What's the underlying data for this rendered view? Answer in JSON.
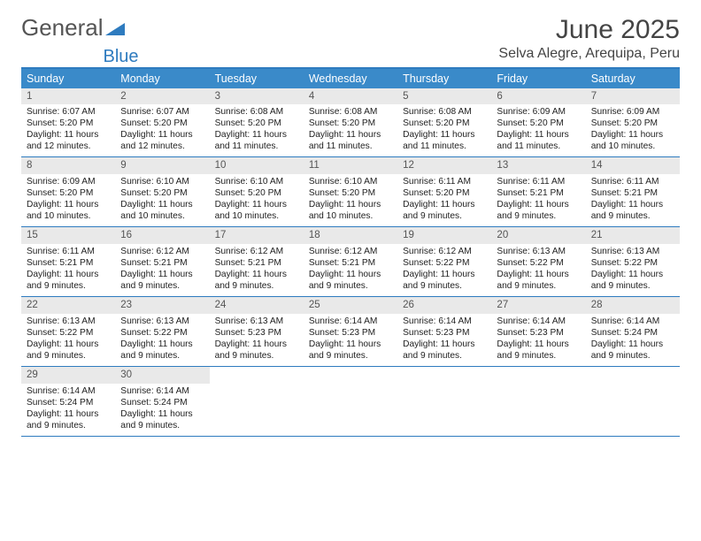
{
  "brand": {
    "part1": "General",
    "part2": "Blue"
  },
  "title": "June 2025",
  "location": "Selva Alegre, Arequipa, Peru",
  "colors": {
    "header_bg": "#3a8ac9",
    "rule": "#2e7bbf",
    "daynum_bg": "#e9e9e9",
    "text": "#222222",
    "title_text": "#444444"
  },
  "layout": {
    "columns": 7,
    "rows": 5
  },
  "day_headers": [
    "Sunday",
    "Monday",
    "Tuesday",
    "Wednesday",
    "Thursday",
    "Friday",
    "Saturday"
  ],
  "days": [
    {
      "n": "1",
      "sunrise": "6:07 AM",
      "sunset": "5:20 PM",
      "daylight": "11 hours and 12 minutes."
    },
    {
      "n": "2",
      "sunrise": "6:07 AM",
      "sunset": "5:20 PM",
      "daylight": "11 hours and 12 minutes."
    },
    {
      "n": "3",
      "sunrise": "6:08 AM",
      "sunset": "5:20 PM",
      "daylight": "11 hours and 11 minutes."
    },
    {
      "n": "4",
      "sunrise": "6:08 AM",
      "sunset": "5:20 PM",
      "daylight": "11 hours and 11 minutes."
    },
    {
      "n": "5",
      "sunrise": "6:08 AM",
      "sunset": "5:20 PM",
      "daylight": "11 hours and 11 minutes."
    },
    {
      "n": "6",
      "sunrise": "6:09 AM",
      "sunset": "5:20 PM",
      "daylight": "11 hours and 11 minutes."
    },
    {
      "n": "7",
      "sunrise": "6:09 AM",
      "sunset": "5:20 PM",
      "daylight": "11 hours and 10 minutes."
    },
    {
      "n": "8",
      "sunrise": "6:09 AM",
      "sunset": "5:20 PM",
      "daylight": "11 hours and 10 minutes."
    },
    {
      "n": "9",
      "sunrise": "6:10 AM",
      "sunset": "5:20 PM",
      "daylight": "11 hours and 10 minutes."
    },
    {
      "n": "10",
      "sunrise": "6:10 AM",
      "sunset": "5:20 PM",
      "daylight": "11 hours and 10 minutes."
    },
    {
      "n": "11",
      "sunrise": "6:10 AM",
      "sunset": "5:20 PM",
      "daylight": "11 hours and 10 minutes."
    },
    {
      "n": "12",
      "sunrise": "6:11 AM",
      "sunset": "5:20 PM",
      "daylight": "11 hours and 9 minutes."
    },
    {
      "n": "13",
      "sunrise": "6:11 AM",
      "sunset": "5:21 PM",
      "daylight": "11 hours and 9 minutes."
    },
    {
      "n": "14",
      "sunrise": "6:11 AM",
      "sunset": "5:21 PM",
      "daylight": "11 hours and 9 minutes."
    },
    {
      "n": "15",
      "sunrise": "6:11 AM",
      "sunset": "5:21 PM",
      "daylight": "11 hours and 9 minutes."
    },
    {
      "n": "16",
      "sunrise": "6:12 AM",
      "sunset": "5:21 PM",
      "daylight": "11 hours and 9 minutes."
    },
    {
      "n": "17",
      "sunrise": "6:12 AM",
      "sunset": "5:21 PM",
      "daylight": "11 hours and 9 minutes."
    },
    {
      "n": "18",
      "sunrise": "6:12 AM",
      "sunset": "5:21 PM",
      "daylight": "11 hours and 9 minutes."
    },
    {
      "n": "19",
      "sunrise": "6:12 AM",
      "sunset": "5:22 PM",
      "daylight": "11 hours and 9 minutes."
    },
    {
      "n": "20",
      "sunrise": "6:13 AM",
      "sunset": "5:22 PM",
      "daylight": "11 hours and 9 minutes."
    },
    {
      "n": "21",
      "sunrise": "6:13 AM",
      "sunset": "5:22 PM",
      "daylight": "11 hours and 9 minutes."
    },
    {
      "n": "22",
      "sunrise": "6:13 AM",
      "sunset": "5:22 PM",
      "daylight": "11 hours and 9 minutes."
    },
    {
      "n": "23",
      "sunrise": "6:13 AM",
      "sunset": "5:22 PM",
      "daylight": "11 hours and 9 minutes."
    },
    {
      "n": "24",
      "sunrise": "6:13 AM",
      "sunset": "5:23 PM",
      "daylight": "11 hours and 9 minutes."
    },
    {
      "n": "25",
      "sunrise": "6:14 AM",
      "sunset": "5:23 PM",
      "daylight": "11 hours and 9 minutes."
    },
    {
      "n": "26",
      "sunrise": "6:14 AM",
      "sunset": "5:23 PM",
      "daylight": "11 hours and 9 minutes."
    },
    {
      "n": "27",
      "sunrise": "6:14 AM",
      "sunset": "5:23 PM",
      "daylight": "11 hours and 9 minutes."
    },
    {
      "n": "28",
      "sunrise": "6:14 AM",
      "sunset": "5:24 PM",
      "daylight": "11 hours and 9 minutes."
    },
    {
      "n": "29",
      "sunrise": "6:14 AM",
      "sunset": "5:24 PM",
      "daylight": "11 hours and 9 minutes."
    },
    {
      "n": "30",
      "sunrise": "6:14 AM",
      "sunset": "5:24 PM",
      "daylight": "11 hours and 9 minutes."
    }
  ],
  "labels": {
    "sunrise": "Sunrise: ",
    "sunset": "Sunset: ",
    "daylight": "Daylight: "
  }
}
